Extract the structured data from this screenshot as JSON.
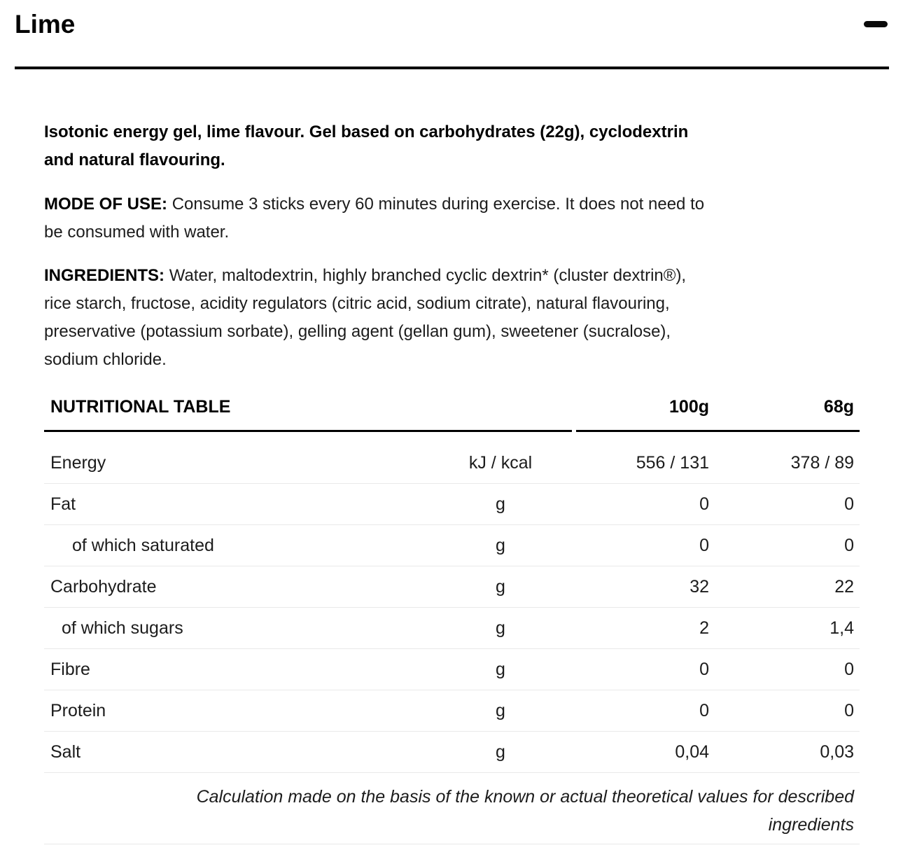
{
  "accordion": {
    "title": "Lime",
    "state": "expanded",
    "toggle_icon": "minus-icon"
  },
  "description": {
    "intro": "Isotonic energy gel, lime flavour. Gel based on carbohydrates (22g), cyclodextrin\nand natural flavouring.",
    "mode_of_use_label": "MODE OF USE:",
    "mode_of_use_text": "Consume 3 sticks every 60 minutes during exercise. It does not need to\nbe consumed with water.",
    "ingredients_label": "INGREDIENTS:",
    "ingredients_text": "Water, maltodextrin, highly branched cyclic dextrin* (cluster dextrin®),\nrice starch, fructose, acidity regulators (citric acid, sodium citrate), natural flavouring,\npreservative (potassium sorbate), gelling agent (gellan gum), sweetener (sucralose),\nsodium chloride."
  },
  "nutrition_table": {
    "header": {
      "title": "NUTRITIONAL TABLE",
      "col_100g": "100g",
      "col_68g": "68g"
    },
    "rows": [
      {
        "label": "Energy",
        "unit": "kJ / kcal",
        "per_100g": "556 / 131",
        "per_68g": "378 / 89",
        "indent": false
      },
      {
        "label": "Fat",
        "unit": "g",
        "per_100g": "0",
        "per_68g": "0",
        "indent": false
      },
      {
        "label": "of which saturated",
        "unit": "g",
        "per_100g": "0",
        "per_68g": "0",
        "indent": true
      },
      {
        "label": "Carbohydrate",
        "unit": "g",
        "per_100g": "32",
        "per_68g": "22",
        "indent": false
      },
      {
        "label": "of which sugars",
        "unit": "g",
        "per_100g": "2",
        "per_68g": "1,4",
        "indent": true
      },
      {
        "label": "Fibre",
        "unit": "g",
        "per_100g": "0",
        "per_68g": "0",
        "indent": false
      },
      {
        "label": "Protein",
        "unit": "g",
        "per_100g": "0",
        "per_68g": "0",
        "indent": false
      },
      {
        "label": "Salt",
        "unit": "g",
        "per_100g": "0,04",
        "per_68g": "0,03",
        "indent": false
      }
    ],
    "footnote": "Calculation made on the basis of the known or actual theoretical values for described\ningredients"
  },
  "colors": {
    "text": "#1c1c1c",
    "heading": "#000000",
    "divider_strong": "#000000",
    "divider_light": "#e9e9e9"
  }
}
